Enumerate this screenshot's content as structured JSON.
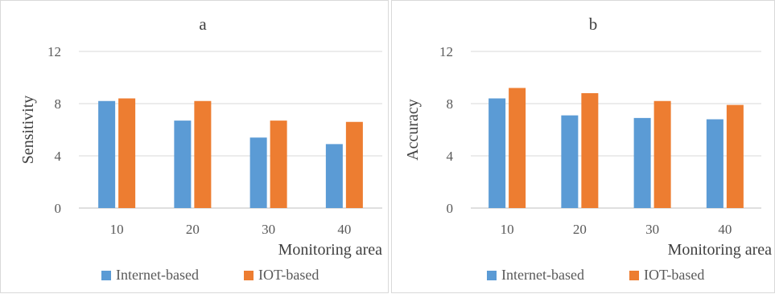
{
  "colors": {
    "internet": "#5b9bd5",
    "iot": "#ed7d31",
    "grid": "#d9d9d9"
  },
  "legend": {
    "internet": "Internet-based",
    "iot": "IOT-based"
  },
  "chart_data": [
    {
      "type": "bar",
      "title": "a",
      "xlabel": "Monitoring area",
      "ylabel": "Sensitivity",
      "categories": [
        "10",
        "20",
        "30",
        "40"
      ],
      "ylim": [
        0,
        12
      ],
      "yticks": [
        "0",
        "4",
        "8",
        "12"
      ],
      "grid": true,
      "legend_position": "bottom",
      "series": [
        {
          "name": "Internet-based",
          "values": [
            8.2,
            6.7,
            5.4,
            4.9
          ]
        },
        {
          "name": "IOT-based",
          "values": [
            8.4,
            8.2,
            6.7,
            6.6
          ]
        }
      ]
    },
    {
      "type": "bar",
      "title": "b",
      "xlabel": "Monitoring area",
      "ylabel": "Accuracy",
      "categories": [
        "10",
        "20",
        "30",
        "40"
      ],
      "ylim": [
        0,
        12
      ],
      "yticks": [
        "0",
        "4",
        "8",
        "12"
      ],
      "grid": true,
      "legend_position": "bottom",
      "series": [
        {
          "name": "Internet-based",
          "values": [
            8.4,
            7.1,
            6.9,
            6.8
          ]
        },
        {
          "name": "IOT-based",
          "values": [
            9.2,
            8.8,
            8.2,
            7.9
          ]
        }
      ]
    }
  ]
}
